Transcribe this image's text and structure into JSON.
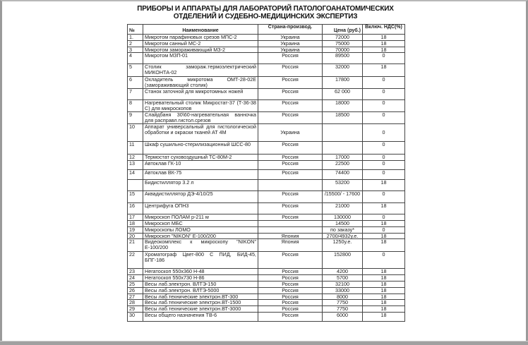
{
  "title_line1": "ПРИБОРЫ И АППАРАТЫ ДЛЯ ЛАБОРАТОРИЙ ПАТОЛОГОАНАТОМИЧЕСКИХ",
  "title_line2": "ОТДЕЛЕНИЙ И СУДЕБНО-МЕДИЦИНСКИХ ЭКСПЕРТИЗ",
  "headers": {
    "num": "№",
    "name": "Наименование",
    "country": "Страна-производ.",
    "price": "Цена (руб.)",
    "vat": "Включ. НДС(%)"
  },
  "rows": [
    {
      "num": "1.",
      "name": "Микротом парафиновых срезов МПС-2",
      "country": "Украина",
      "price": "72000",
      "vat": "18"
    },
    {
      "num": "2",
      "name": "Микротом санный МС-2",
      "country": "Украина",
      "price": "75000",
      "vat": "18"
    },
    {
      "num": "3",
      "name": "Микротом замораживающий МЗ-2",
      "country": "Украина",
      "price": "70000",
      "vat": "18"
    },
    {
      "num": "4",
      "name": "Микротом МЗП-01",
      "country": "Россия",
      "price": "89500",
      "vat": "0"
    },
    {
      "num": "5",
      "name": "Столик заморaж.термоэлектрический МИКОНТА-02",
      "country": "Россия",
      "price": "32000",
      "vat": "18"
    },
    {
      "num": "6",
      "name": "Охладитель микротома ОМТ-28-02Е (замораживающий столик)",
      "country": "Россия",
      "price": "17800",
      "vat": "0"
    },
    {
      "num": "7",
      "name": "Станок заточной для микротомных ножей",
      "country": "Россия",
      "price": "62 000",
      "vat": "0"
    },
    {
      "num": "8",
      "name": "Нагревательный столик Микростат-37 (Т-36-38 С) для микроскопов",
      "country": "Россия",
      "price": "18000",
      "vat": "0"
    },
    {
      "num": "9",
      "name": "Слайдбаня 30\\60-нагревательная ванночка для расправл.гистол.срезов",
      "country": "Россия",
      "price": "18500",
      "vat": "0"
    },
    {
      "num": "10",
      "name": "Аппарат универсальный для гистологической обработки и окраски тканей АТ 4М",
      "country": "Украина",
      "price": "",
      "vat": "0"
    },
    {
      "num": "11",
      "name": "Шкаф сушильно-стерилизационный ШСС-80",
      "country": "Россия",
      "price": "",
      "vat": "0"
    },
    {
      "num": "12",
      "name": "Термостат суховоздушный ТС-80М-2",
      "country": "Россия",
      "price": "17000",
      "vat": "0"
    },
    {
      "num": "13",
      "name": "Автоклав ГК-10",
      "country": "Россия",
      "price": "22500",
      "vat": "0"
    },
    {
      "num": "14",
      "name": "Автоклав ВК-75",
      "country": "Россия",
      "price": "74400",
      "vat": "0"
    },
    {
      "num": "",
      "name": "Бидистиллятор 3.2 л",
      "country": "",
      "price": "53200",
      "vat": "18"
    },
    {
      "num": "15",
      "name": "Аквадистиллятор ДЭ-4/10/25",
      "country": "Россия",
      "price": "/15500/ - 17600",
      "vat": "0"
    },
    {
      "num": "16",
      "name": "Центрифуга ОПН3",
      "country": "Россия",
      "price": "21000",
      "vat": "18"
    },
    {
      "num": "17",
      "name": "Микроскоп ПОЛАМ р-211 м",
      "country": "Россия",
      "price": "130000",
      "vat": "0"
    },
    {
      "num": "18",
      "name": "Микроскоп МБС",
      "country": "",
      "price": "14500",
      "vat": "18"
    },
    {
      "num": "19",
      "name": "Микроскопы ЛОМО",
      "country": "",
      "price": "по заказу*",
      "vat": "0"
    },
    {
      "num": "20",
      "name": "Микроскоп \"NIKON\" Е-100/200",
      "country": "Япония",
      "price": "2700/4932у.е.",
      "vat": "18"
    },
    {
      "num": "21",
      "name": "Видеокомплекс к микроскопу \"NIKON\" Е-100/200",
      "country": "Япония",
      "price": "1250у.е.",
      "vat": "18"
    },
    {
      "num": "22",
      "name": "Хроматограф Цвет-800 С ПИД, БИД-45, БПГ-186",
      "country": "Россия",
      "price": "152800",
      "vat": "0"
    },
    {
      "num": "23",
      "name": "Негатоскоп 550х360 Н-48",
      "country": "Россия",
      "price": "4200",
      "vat": "18"
    },
    {
      "num": "24",
      "name": "Негатоскоп 550х730 Н-86",
      "country": "Россия",
      "price": "5700",
      "vat": "18"
    },
    {
      "num": "25",
      "name": "Весы лаб.электрон. ВЛТЭ-150",
      "country": "Россия",
      "price": "32100",
      "vat": "18"
    },
    {
      "num": "26",
      "name": "Весы лаб.электрон. ВЛТЭ-5000",
      "country": "Россия",
      "price": "33000",
      "vat": "18"
    },
    {
      "num": "27",
      "name": "Весы лаб.технические электрон.ВТ-300",
      "country": "Россия",
      "price": "8000",
      "vat": "18"
    },
    {
      "num": "28",
      "name": "Весы лаб.технические электрон.ВТ-1500",
      "country": "Россия",
      "price": "7750",
      "vat": "18"
    },
    {
      "num": "29",
      "name": "Весы лаб.технические электрон.ВТ-3000",
      "country": "Россия",
      "price": "7750",
      "vat": "18"
    },
    {
      "num": "30",
      "name": "Весы общего назначения ТВ-6",
      "country": "Россия",
      "price": "6000",
      "vat": "18"
    }
  ]
}
